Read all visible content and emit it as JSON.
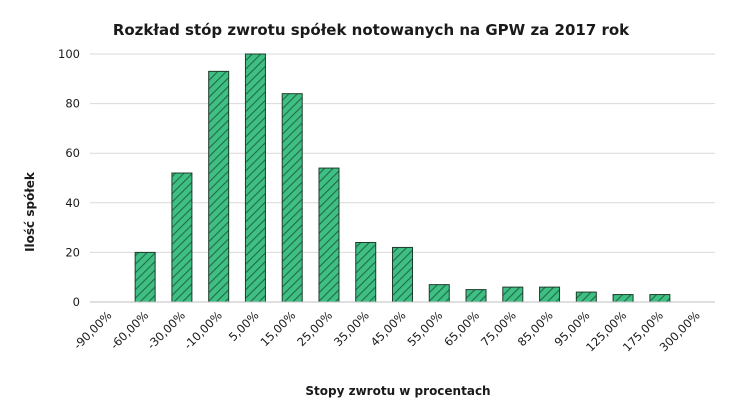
{
  "colors": {
    "bar_fill": "#3fbf84",
    "bar_hatch": "#1f6b45",
    "bar_stroke": "#1e3d2b",
    "grid": "#d9d9d9"
  },
  "chart_data": {
    "type": "bar",
    "title": "Rozkład stóp zwrotu spółek notowanych na GPW za 2017 rok",
    "xlabel": "Stopy zwrotu w procentach",
    "ylabel": "Ilość spółek",
    "categories": [
      "-90,00%",
      "-60,00%",
      "-30,00%",
      "-10,00%",
      "5,00%",
      "15,00%",
      "25,00%",
      "35,00%",
      "45,00%",
      "55,00%",
      "65,00%",
      "75,00%",
      "85,00%",
      "95,00%",
      "125,00%",
      "175,00%",
      "300,00%"
    ],
    "values": [
      0,
      20,
      52,
      93,
      100,
      84,
      54,
      24,
      22,
      7,
      5,
      6,
      6,
      4,
      3,
      3,
      0
    ],
    "ylim": [
      0,
      100
    ],
    "yticks": [
      0,
      20,
      40,
      60,
      80,
      100
    ],
    "grid": true,
    "bar_pattern": "diagonal-hatch"
  }
}
